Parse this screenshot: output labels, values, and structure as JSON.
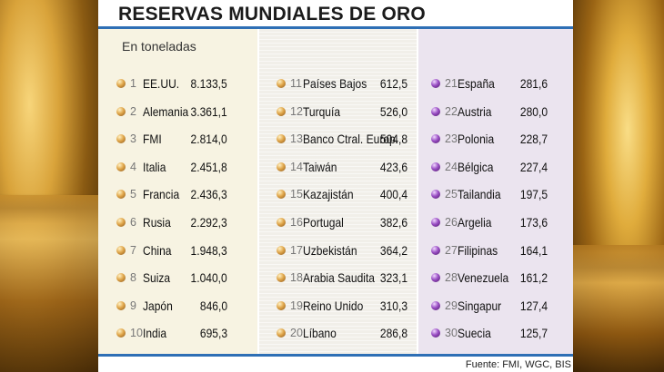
{
  "chart_data": {
    "type": "table",
    "title": "RESERVAS MUNDIALES DE ORO",
    "subtitle": "En toneladas",
    "source": "Fuente: FMI, WGC, BIS",
    "columns": [
      [
        {
          "rank": "1",
          "country": "EE.UU.",
          "value": "8.133,5"
        },
        {
          "rank": "2",
          "country": "Alemania",
          "value": "3.361,1"
        },
        {
          "rank": "3",
          "country": "FMI",
          "value": "2.814,0"
        },
        {
          "rank": "4",
          "country": "Italia",
          "value": "2.451,8"
        },
        {
          "rank": "5",
          "country": "Francia",
          "value": "2.436,3"
        },
        {
          "rank": "6",
          "country": "Rusia",
          "value": "2.292,3"
        },
        {
          "rank": "7",
          "country": "China",
          "value": "1.948,3"
        },
        {
          "rank": "8",
          "country": "Suiza",
          "value": "1.040,0"
        },
        {
          "rank": "9",
          "country": "Japón",
          "value": "846,0"
        },
        {
          "rank": "10",
          "country": "India",
          "value": "695,3"
        }
      ],
      [
        {
          "rank": "11",
          "country": "Países Bajos",
          "value": "612,5"
        },
        {
          "rank": "12",
          "country": "Turquía",
          "value": "526,0"
        },
        {
          "rank": "13",
          "country": "Banco Ctral. Europ.",
          "value": "504,8"
        },
        {
          "rank": "14",
          "country": "Taiwán",
          "value": "423,6"
        },
        {
          "rank": "15",
          "country": "Kazajistán",
          "value": "400,4"
        },
        {
          "rank": "16",
          "country": "Portugal",
          "value": "382,6"
        },
        {
          "rank": "17",
          "country": "Uzbekistán",
          "value": "364,2"
        },
        {
          "rank": "18",
          "country": "Arabia Saudita",
          "value": "323,1"
        },
        {
          "rank": "19",
          "country": "Reino Unido",
          "value": "310,3"
        },
        {
          "rank": "20",
          "country": "Líbano",
          "value": "286,8"
        }
      ],
      [
        {
          "rank": "21",
          "country": "España",
          "value": "281,6"
        },
        {
          "rank": "22",
          "country": "Austria",
          "value": "280,0"
        },
        {
          "rank": "23",
          "country": "Polonia",
          "value": "228,7"
        },
        {
          "rank": "24",
          "country": "Bélgica",
          "value": "227,4"
        },
        {
          "rank": "25",
          "country": "Tailandia",
          "value": "197,5"
        },
        {
          "rank": "26",
          "country": "Argelia",
          "value": "173,6"
        },
        {
          "rank": "27",
          "country": "Filipinas",
          "value": "164,1"
        },
        {
          "rank": "28",
          "country": "Venezuela",
          "value": "161,2"
        },
        {
          "rank": "29",
          "country": "Singapur",
          "value": "127,4"
        },
        {
          "rank": "30",
          "country": "Suecia",
          "value": "125,7"
        }
      ]
    ]
  },
  "colors": {
    "accent": "#2e6fb5",
    "bullet_gold": "#c98a2e",
    "bullet_purple": "#7a2fa0"
  }
}
